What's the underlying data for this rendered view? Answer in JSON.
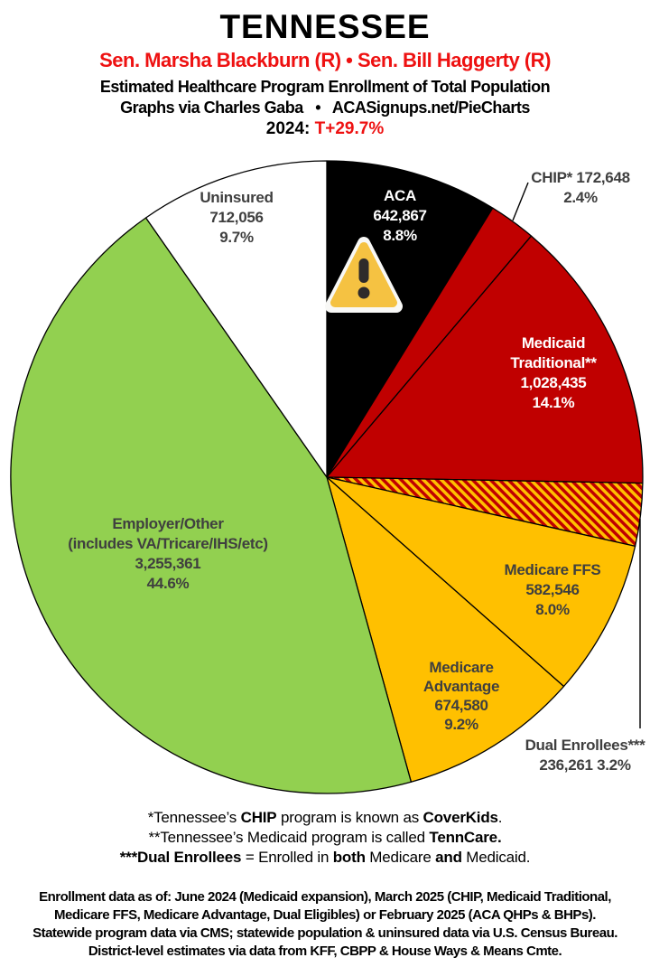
{
  "header": {
    "state": "TENNESSEE",
    "senators": "Sen. Marsha Blackburn (R) • Sen. Bill Haggerty (R)",
    "subtitle1": "Estimated Healthcare Program Enrollment of Total Population",
    "subtitle2": "Graphs via Charles Gaba   •   ACASignups.net/PieCharts",
    "year_label": "2024:",
    "partisan_lean": "T+29.7%"
  },
  "colors": {
    "header_red": "#ee1111",
    "pie_red": "#c00000",
    "pie_gold": "#ffc000",
    "pie_green": "#92d050",
    "pie_black": "#000000",
    "pie_white": "#ffffff",
    "label_gray": "#3f3f3f",
    "warning_yellow": "#f5c242",
    "warning_glyph": "#2e2b2b",
    "warning_border": "#f8f8f6"
  },
  "chart_data": {
    "type": "pie",
    "title": "Estimated Healthcare Program Enrollment of Total Population",
    "units": "people",
    "direction": "clockwise",
    "start_angle": "12 o'clock",
    "center": [
      362,
      528
    ],
    "radius": 350,
    "hatch_colors": [
      "#c00000",
      "#ffc000"
    ],
    "slices": [
      {
        "id": "aca",
        "label": "ACA",
        "value": 642867,
        "pct": 8.8,
        "color": "#000000"
      },
      {
        "id": "chip",
        "label": "CHIP*",
        "value": 172648,
        "pct": 2.4,
        "color": "#c00000"
      },
      {
        "id": "medicaid-traditional",
        "label": "Medicaid Traditional**",
        "value": 1028435,
        "pct": 14.1,
        "color": "#c00000"
      },
      {
        "id": "dual-enrollees",
        "label": "Dual Enrollees***",
        "value": 236261,
        "pct": 3.2,
        "color": "hatch"
      },
      {
        "id": "medicare-ffs",
        "label": "Medicare FFS",
        "value": 582546,
        "pct": 8.0,
        "color": "#ffc000"
      },
      {
        "id": "medicare-advantage",
        "label": "Medicare Advantage",
        "value": 674580,
        "pct": 9.2,
        "color": "#ffc000"
      },
      {
        "id": "employer-other",
        "label": "Employer/Other (includes VA/Tricare/IHS/etc)",
        "value": 3255361,
        "pct": 44.6,
        "color": "#92d050"
      },
      {
        "id": "uninsured",
        "label": "Uninsured",
        "value": 712056,
        "pct": 9.7,
        "color": "#ffffff"
      }
    ]
  },
  "slice_labels": {
    "aca": {
      "lines": [
        "ACA",
        "642,867",
        "8.8%"
      ]
    },
    "chip": {
      "lines": [
        "CHIP* 172,648",
        "2.4%"
      ]
    },
    "medicaid": {
      "lines": [
        "Medicaid",
        "Traditional**",
        "1,028,435",
        "14.1%"
      ]
    },
    "dual": {
      "lines": [
        "Dual Enrollees***",
        "236,261 3.2%"
      ]
    },
    "medicare_ffs": {
      "lines": [
        "Medicare FFS",
        "582,546",
        "8.0%"
      ]
    },
    "medicare_adv": {
      "lines": [
        "Medicare",
        "Advantage",
        "674,580",
        "9.2%"
      ]
    },
    "employer": {
      "lines": [
        "Employer/Other",
        "(includes VA/Tricare/IHS/etc)",
        "3,255,361",
        "44.6%"
      ]
    },
    "uninsured": {
      "lines": [
        "Uninsured",
        "712,056",
        "9.7%"
      ]
    }
  },
  "footnotes": {
    "line1": {
      "parts": [
        "*Tennessee’s ",
        "CHIP",
        " program is known as ",
        "CoverKids",
        "."
      ]
    },
    "line2": {
      "parts": [
        "**Tennessee’s Medicaid program is called ",
        "TennCare."
      ]
    },
    "line3": {
      "parts": [
        "***Dual Enrollees",
        " = Enrolled in ",
        "both",
        " Medicare ",
        "and",
        " Medicaid."
      ]
    }
  },
  "source_note": {
    "lines": [
      "Enrollment data as of: June 2024 (Medicaid expansion), March 2025 (CHIP, Medicaid Traditional,",
      "Medicare FFS, Medicare Advantage, Dual Eligibles) or February 2025 (ACA QHPs & BHPs).",
      "Statewide program data via CMS; statewide population & uninsured data via U.S. Census Bureau.",
      "District-level estimates via data from KFF, CBPP & House Ways & Means Cmte."
    ]
  }
}
